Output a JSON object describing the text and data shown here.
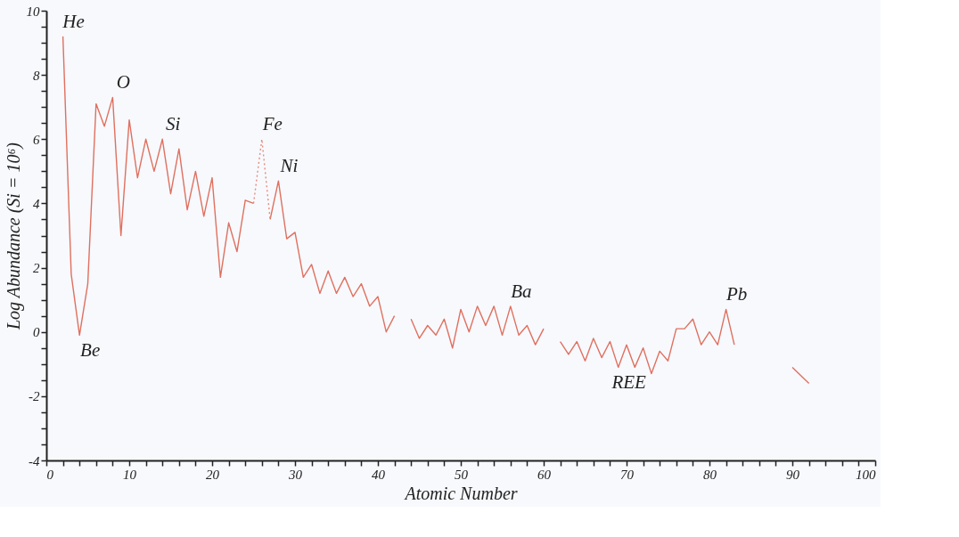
{
  "chart_data": {
    "type": "line",
    "xlabel": "Atomic Number",
    "ylabel": "Log Abundance (Si = 10⁶)",
    "x": [
      2,
      3,
      4,
      5,
      6,
      7,
      8,
      9,
      10,
      11,
      12,
      13,
      14,
      15,
      16,
      17,
      18,
      19,
      20,
      21,
      22,
      23,
      24,
      25,
      26,
      27,
      28,
      29,
      30,
      31,
      32,
      33,
      34,
      35,
      36,
      37,
      38,
      39,
      40,
      41,
      42,
      43,
      44,
      45,
      46,
      47,
      48,
      49,
      50,
      51,
      52,
      53,
      54,
      55,
      56,
      57,
      58,
      59,
      60,
      61,
      62,
      63,
      64,
      65,
      66,
      67,
      68,
      69,
      70,
      71,
      72,
      73,
      74,
      75,
      76,
      77,
      78,
      79,
      80,
      81,
      82,
      83,
      84,
      85,
      86,
      87,
      88,
      89,
      90,
      92
    ],
    "series": [
      {
        "color": "#e0705f",
        "line_style": "solid",
        "values": [
          9.2,
          1.8,
          -0.1,
          1.5,
          7.1,
          6.4,
          7.3,
          3.0,
          6.6,
          4.8,
          6.0,
          5.0,
          6.0,
          4.3,
          5.7,
          3.8,
          5.0,
          3.6,
          4.8,
          1.7,
          3.4,
          2.5,
          4.1,
          4.0,
          null,
          3.5,
          4.7,
          2.9,
          3.1,
          1.7,
          2.1,
          1.2,
          1.9,
          1.2,
          1.7,
          1.1,
          1.5,
          0.8,
          1.1,
          0.0,
          0.5,
          null,
          0.4,
          -0.2,
          0.2,
          -0.1,
          0.4,
          -0.5,
          0.7,
          0.0,
          0.8,
          0.2,
          0.8,
          -0.1,
          0.8,
          -0.1,
          0.2,
          -0.4,
          0.1,
          null,
          -0.3,
          -0.7,
          -0.3,
          -0.9,
          -0.2,
          -0.8,
          -0.3,
          -1.1,
          -0.4,
          -1.1,
          -0.5,
          -1.3,
          -0.6,
          -0.9,
          0.1,
          0.1,
          0.4,
          -0.4,
          0.0,
          -0.4,
          0.7,
          -0.4,
          null,
          null,
          null,
          null,
          null,
          null,
          -1.1,
          -1.6
        ]
      },
      {
        "color": "#e98a7c",
        "line_style": "dotted",
        "x": [
          25,
          26,
          27
        ],
        "values": [
          4.0,
          6.0,
          3.5
        ]
      }
    ],
    "xlim": [
      0,
      100
    ],
    "ylim": [
      -4,
      10
    ],
    "xticks": [
      0,
      {
        "value": 2,
        "label": null
      },
      {
        "value": 4,
        "label": null
      },
      {
        "value": 6,
        "label": null
      },
      {
        "value": 8,
        "label": null
      },
      10,
      {
        "value": 12,
        "label": null
      },
      {
        "value": 14,
        "label": null
      },
      {
        "value": 16,
        "label": null
      },
      {
        "value": 18,
        "label": null
      },
      20,
      {
        "value": 22,
        "label": null
      },
      {
        "value": 24,
        "label": null
      },
      {
        "value": 26,
        "label": null
      },
      {
        "value": 28,
        "label": null
      },
      30,
      {
        "value": 32,
        "label": null
      },
      {
        "value": 34,
        "label": null
      },
      {
        "value": 36,
        "label": null
      },
      {
        "value": 38,
        "label": null
      },
      40,
      {
        "value": 42,
        "label": null
      },
      {
        "value": 44,
        "label": null
      },
      {
        "value": 46,
        "label": null
      },
      {
        "value": 48,
        "label": null
      },
      50,
      {
        "value": 52,
        "label": null
      },
      {
        "value": 54,
        "label": null
      },
      {
        "value": 56,
        "label": null
      },
      {
        "value": 58,
        "label": null
      },
      60,
      {
        "value": 62,
        "label": null
      },
      {
        "value": 64,
        "label": null
      },
      {
        "value": 66,
        "label": null
      },
      {
        "value": 68,
        "label": null
      },
      70,
      {
        "value": 72,
        "label": null
      },
      {
        "value": 74,
        "label": null
      },
      {
        "value": 76,
        "label": null
      },
      {
        "value": 78,
        "label": null
      },
      80,
      {
        "value": 82,
        "label": null
      },
      {
        "value": 84,
        "label": null
      },
      {
        "value": 86,
        "label": null
      },
      {
        "value": 88,
        "label": null
      },
      90,
      {
        "value": 92,
        "label": null
      },
      {
        "value": 94,
        "label": null
      },
      {
        "value": 96,
        "label": null
      },
      {
        "value": 98,
        "label": null
      },
      100
    ],
    "yticks": [
      -4,
      {
        "value": -3.5,
        "label": null
      },
      {
        "value": -3,
        "label": null
      },
      {
        "value": -2.5,
        "label": null
      },
      -2,
      {
        "value": -1.5,
        "label": null
      },
      {
        "value": -1,
        "label": null
      },
      {
        "value": -0.5,
        "label": null
      },
      0,
      {
        "value": 0.5,
        "label": null
      },
      {
        "value": 1,
        "label": null
      },
      {
        "value": 1.5,
        "label": null
      },
      2,
      {
        "value": 2.5,
        "label": null
      },
      {
        "value": 3,
        "label": null
      },
      {
        "value": 3.5,
        "label": null
      },
      4,
      {
        "value": 4.5,
        "label": null
      },
      {
        "value": 5,
        "label": null
      },
      {
        "value": 5.5,
        "label": null
      },
      6,
      {
        "value": 6.5,
        "label": null
      },
      {
        "value": 7,
        "label": null
      },
      {
        "value": 7.5,
        "label": null
      },
      8,
      {
        "value": 8.5,
        "label": null
      },
      {
        "value": 9,
        "label": null
      },
      {
        "value": 9.5,
        "label": null
      },
      10
    ],
    "annotations": [
      {
        "text": "He",
        "x": 2,
        "y": 9.2
      },
      {
        "text": "O",
        "x": 8,
        "y": 7.3
      },
      {
        "text": "Si",
        "x": 14,
        "y": 6.0
      },
      {
        "text": "Fe",
        "x": 26,
        "y": 6.0
      },
      {
        "text": "Ni",
        "x": 28,
        "y": 4.7
      },
      {
        "text": "Ba",
        "x": 56,
        "y": 0.8
      },
      {
        "text": "Pb",
        "x": 82,
        "y": 0.7
      },
      {
        "text": "Be",
        "x": 4,
        "y": -0.1
      },
      {
        "text": "REE",
        "x": 69,
        "y": -1.1
      }
    ],
    "grid": false
  }
}
